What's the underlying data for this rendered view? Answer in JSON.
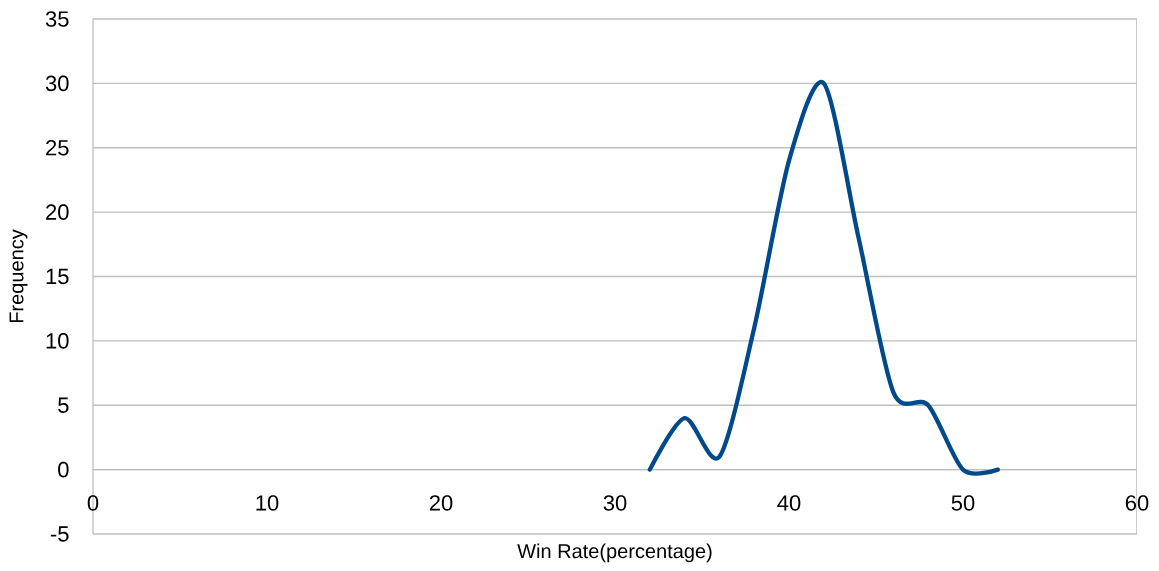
{
  "chart_data": {
    "type": "line",
    "xlabel": "Win Rate(percentage)",
    "ylabel": "Frequency",
    "x": [
      32,
      34,
      36,
      38,
      40,
      42,
      44,
      46,
      48,
      50,
      52
    ],
    "series": [
      {
        "color": "#004a8b",
        "values": [
          0,
          4,
          1,
          11,
          24,
          30,
          18,
          6,
          5,
          0,
          0
        ]
      }
    ],
    "xlim": [
      0,
      60
    ],
    "ylim": [
      -5,
      35
    ],
    "xticks": [
      0,
      10,
      20,
      30,
      40,
      50,
      60
    ],
    "yticks": [
      -5,
      0,
      5,
      10,
      15,
      20,
      25,
      30,
      35
    ],
    "grid": "y"
  }
}
